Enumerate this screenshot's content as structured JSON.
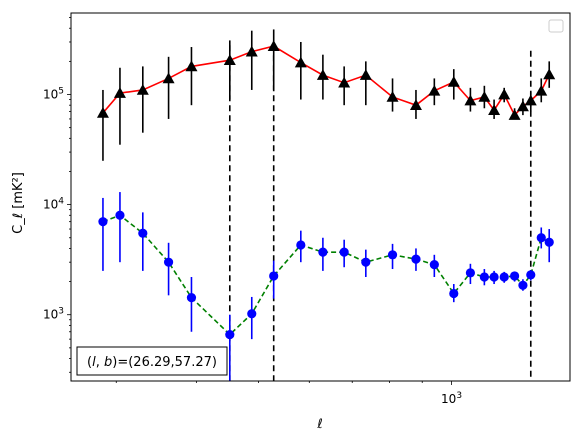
{
  "chart_data": {
    "type": "scatter",
    "xscale": "log",
    "yscale": "log",
    "xlabel": "ℓ",
    "ylabel": "C_ℓ  [mK²]",
    "xlim": [
      255,
      1530
    ],
    "ylim": [
      250,
      550000
    ],
    "xticks": [
      {
        "value": 1000,
        "base": "10",
        "exp": "3"
      }
    ],
    "yticks": [
      {
        "value": 1000,
        "base": "10",
        "exp": "3"
      },
      {
        "value": 10000,
        "base": "10",
        "exp": "4"
      },
      {
        "value": 100000,
        "base": "10",
        "exp": "5"
      }
    ],
    "annotation": "(l, b)=(26.29,57.27)",
    "annotation_parts": {
      "l": "l",
      "b": "b",
      "value": "=(26.29,57.27)"
    },
    "vlines": [
      {
        "x": 451,
        "ymin": 250,
        "ymax": 280000
      },
      {
        "x": 528,
        "ymin": 250,
        "ymax": 280000
      },
      {
        "x": 1329,
        "ymin": 250,
        "ymax": 250000
      }
    ],
    "legend": {
      "placement": "top-right",
      "entries": []
    },
    "series": [
      {
        "marker": "triangle",
        "color": "#000000",
        "line_color": "#ff0000",
        "line_style": "solid",
        "points": [
          {
            "x": 286,
            "y": 68000,
            "lo": 25000,
            "hi": 110000
          },
          {
            "x": 304,
            "y": 103000,
            "lo": 35000,
            "hi": 175000
          },
          {
            "x": 330,
            "y": 110000,
            "lo": 45000,
            "hi": 180000
          },
          {
            "x": 362,
            "y": 140000,
            "lo": 60000,
            "hi": 220000
          },
          {
            "x": 393,
            "y": 180000,
            "lo": 80000,
            "hi": 270000
          },
          {
            "x": 451,
            "y": 205000,
            "lo": 90000,
            "hi": 310000
          },
          {
            "x": 488,
            "y": 245000,
            "lo": 110000,
            "hi": 380000
          },
          {
            "x": 528,
            "y": 275000,
            "lo": 110000,
            "hi": 390000
          },
          {
            "x": 582,
            "y": 195000,
            "lo": 90000,
            "hi": 300000
          },
          {
            "x": 630,
            "y": 150000,
            "lo": 90000,
            "hi": 230000
          },
          {
            "x": 680,
            "y": 128000,
            "lo": 80000,
            "hi": 180000
          },
          {
            "x": 735,
            "y": 150000,
            "lo": 80000,
            "hi": 200000
          },
          {
            "x": 809,
            "y": 95000,
            "lo": 70000,
            "hi": 140000
          },
          {
            "x": 880,
            "y": 80000,
            "lo": 60000,
            "hi": 110000
          },
          {
            "x": 940,
            "y": 108000,
            "lo": 80000,
            "hi": 140000
          },
          {
            "x": 1008,
            "y": 130000,
            "lo": 90000,
            "hi": 170000
          },
          {
            "x": 1070,
            "y": 88000,
            "lo": 70000,
            "hi": 115000
          },
          {
            "x": 1125,
            "y": 95000,
            "lo": 75000,
            "hi": 120000
          },
          {
            "x": 1165,
            "y": 72000,
            "lo": 60000,
            "hi": 90000
          },
          {
            "x": 1208,
            "y": 100000,
            "lo": 85000,
            "hi": 115000
          },
          {
            "x": 1254,
            "y": 65000,
            "lo": 60000,
            "hi": 75000
          },
          {
            "x": 1292,
            "y": 78000,
            "lo": 65000,
            "hi": 92000
          },
          {
            "x": 1329,
            "y": 88000,
            "lo": 70000,
            "hi": 105000
          },
          {
            "x": 1380,
            "y": 108000,
            "lo": 85000,
            "hi": 140000
          },
          {
            "x": 1420,
            "y": 152000,
            "lo": 115000,
            "hi": 200000
          }
        ]
      },
      {
        "marker": "circle",
        "color": "#0000ff",
        "line_color": "#008000",
        "line_style": "dashed",
        "points": [
          {
            "x": 286,
            "y": 7000,
            "lo": 2500,
            "hi": 11500
          },
          {
            "x": 304,
            "y": 8000,
            "lo": 3000,
            "hi": 13000
          },
          {
            "x": 330,
            "y": 5500,
            "lo": 2500,
            "hi": 8500
          },
          {
            "x": 362,
            "y": 3000,
            "lo": 1500,
            "hi": 4500
          },
          {
            "x": 393,
            "y": 1430,
            "lo": 700,
            "hi": 2200
          },
          {
            "x": 451,
            "y": 660,
            "lo": 250,
            "hi": 1000
          },
          {
            "x": 488,
            "y": 1020,
            "lo": 600,
            "hi": 1450
          },
          {
            "x": 528,
            "y": 2250,
            "lo": 1400,
            "hi": 3100
          },
          {
            "x": 582,
            "y": 4300,
            "lo": 3000,
            "hi": 5800
          },
          {
            "x": 630,
            "y": 3700,
            "lo": 2500,
            "hi": 5000
          },
          {
            "x": 680,
            "y": 3700,
            "lo": 2700,
            "hi": 4800
          },
          {
            "x": 735,
            "y": 3000,
            "lo": 2200,
            "hi": 3900
          },
          {
            "x": 809,
            "y": 3500,
            "lo": 2600,
            "hi": 4400
          },
          {
            "x": 880,
            "y": 3200,
            "lo": 2500,
            "hi": 4000
          },
          {
            "x": 940,
            "y": 2850,
            "lo": 2200,
            "hi": 3500
          },
          {
            "x": 1008,
            "y": 1560,
            "lo": 1300,
            "hi": 1900
          },
          {
            "x": 1070,
            "y": 2400,
            "lo": 1900,
            "hi": 2900
          },
          {
            "x": 1125,
            "y": 2200,
            "lo": 1850,
            "hi": 2600
          },
          {
            "x": 1165,
            "y": 2200,
            "lo": 1900,
            "hi": 2500
          },
          {
            "x": 1208,
            "y": 2200,
            "lo": 1950,
            "hi": 2450
          },
          {
            "x": 1254,
            "y": 2250,
            "lo": 2000,
            "hi": 2450
          },
          {
            "x": 1292,
            "y": 1850,
            "lo": 1650,
            "hi": 2100
          },
          {
            "x": 1329,
            "y": 2300,
            "lo": 2050,
            "hi": 2550
          },
          {
            "x": 1380,
            "y": 5000,
            "lo": 4000,
            "hi": 6200
          },
          {
            "x": 1420,
            "y": 4550,
            "lo": 3000,
            "hi": 6000
          }
        ]
      }
    ]
  }
}
